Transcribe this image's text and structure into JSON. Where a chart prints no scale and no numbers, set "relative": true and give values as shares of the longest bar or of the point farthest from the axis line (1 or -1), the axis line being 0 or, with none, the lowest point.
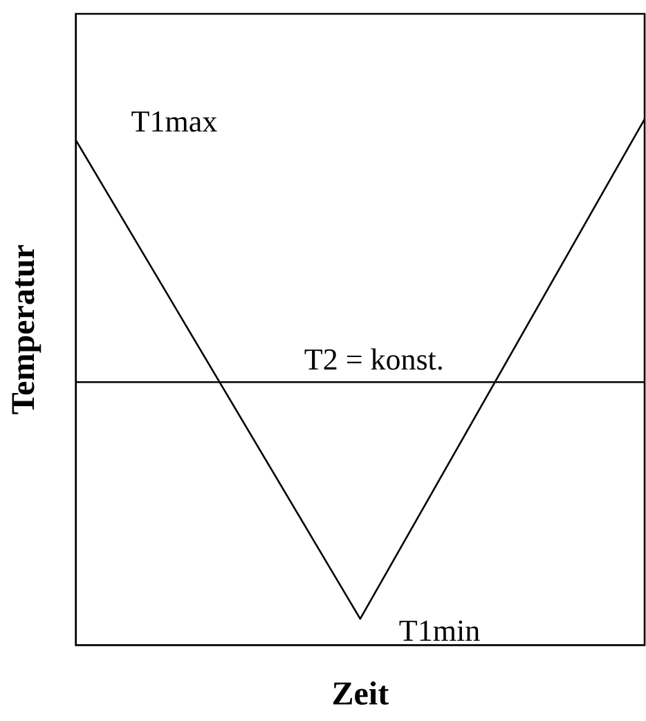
{
  "chart_data": {
    "type": "line",
    "relative": true,
    "xlabel": "Zeit",
    "ylabel": "Temperatur",
    "categories": [
      null,
      null,
      null
    ],
    "series": [
      {
        "color": "#000000",
        "values": [
          0.96,
          0.05,
          1
        ]
      }
    ],
    "ref_lines": [
      {
        "axis": "y",
        "value": 0.5,
        "label": "T2 = konst.",
        "color": "#000000"
      }
    ],
    "annotations": [
      "T1max",
      "T1min"
    ],
    "marker": "none",
    "line_style": "solid",
    "grid": false,
    "legend": false
  }
}
